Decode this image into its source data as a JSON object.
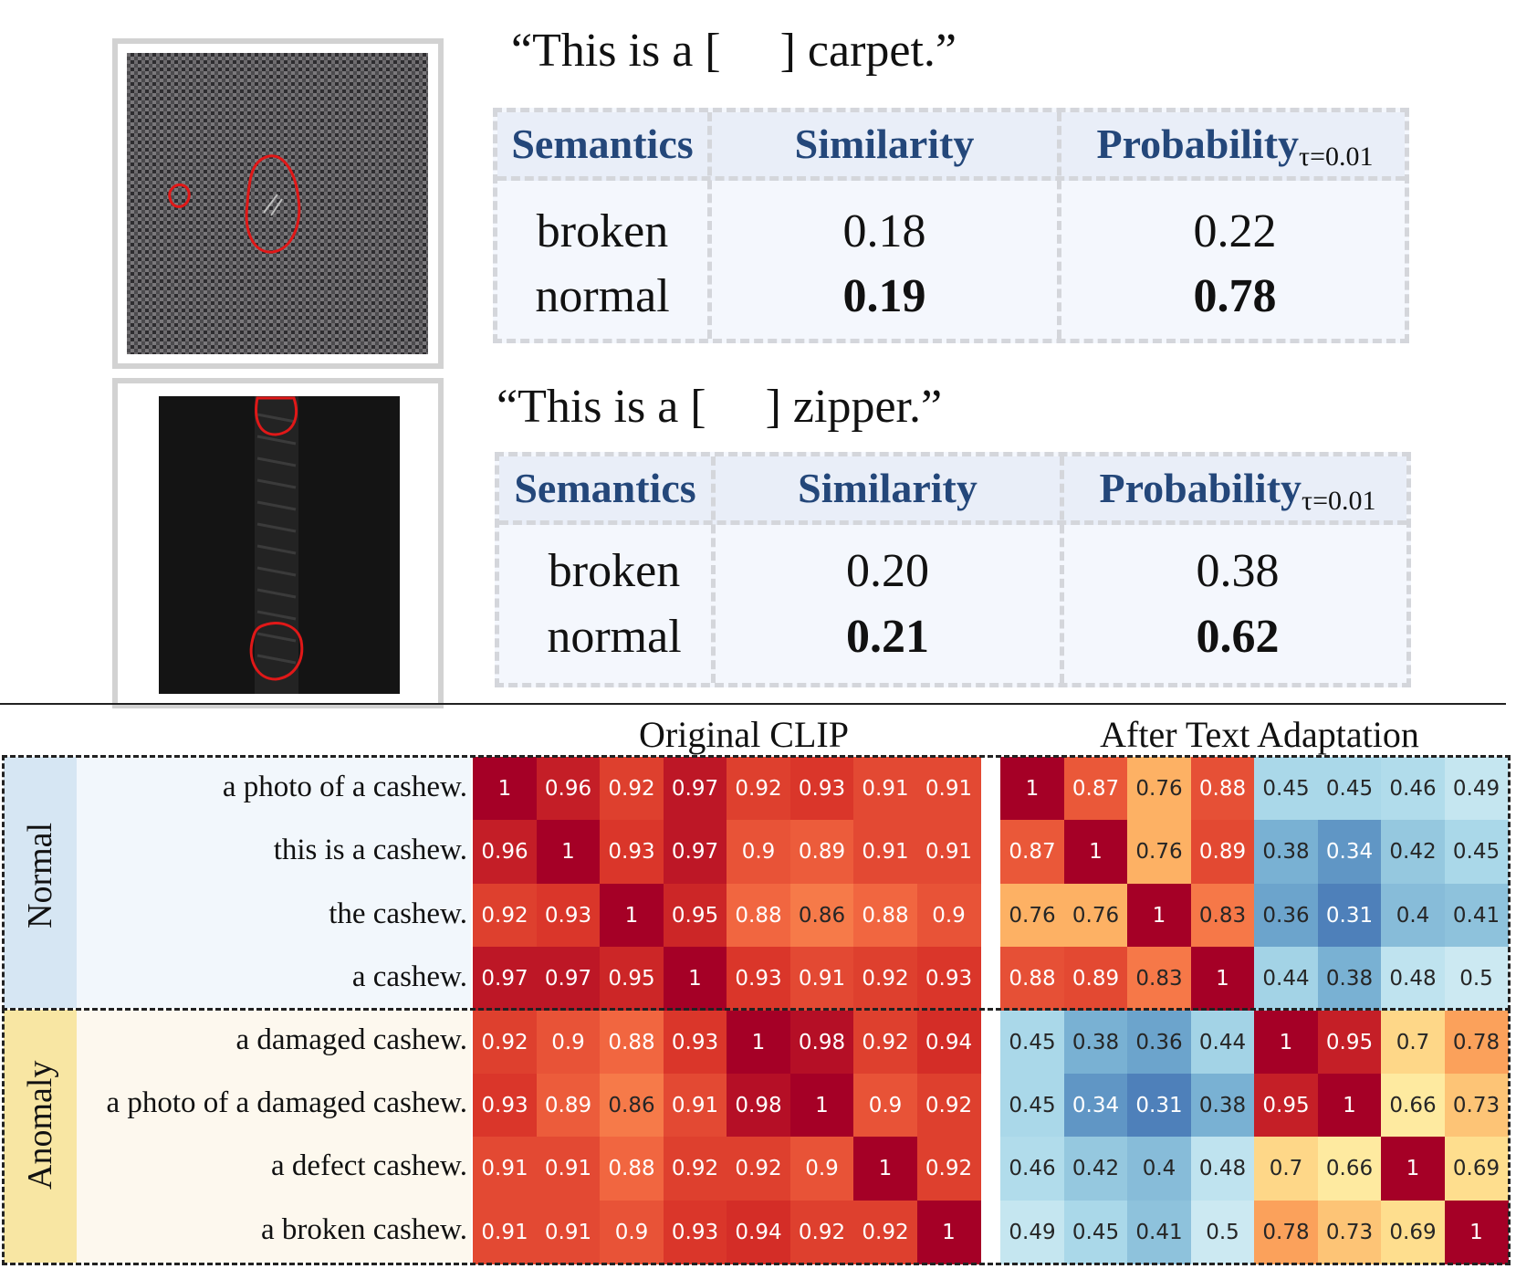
{
  "examples": [
    {
      "prompt": "“This is a [     ] carpet.”",
      "table": {
        "headers": {
          "semantics": "Semantics",
          "similarity": "Similarity",
          "probability": "Probability",
          "probability_sub": "τ=0.01"
        },
        "rows": [
          {
            "semantics": "broken",
            "similarity": "0.18",
            "probability": "0.22"
          },
          {
            "semantics": "normal",
            "similarity": "0.19",
            "probability": "0.78"
          }
        ]
      }
    },
    {
      "prompt": "“This is a [     ] zipper.”",
      "table": {
        "headers": {
          "semantics": "Semantics",
          "similarity": "Similarity",
          "probability": "Probability",
          "probability_sub": "τ=0.01"
        },
        "rows": [
          {
            "semantics": "broken",
            "similarity": "0.20",
            "probability": "0.38"
          },
          {
            "semantics": "normal",
            "similarity": "0.21",
            "probability": "0.62"
          }
        ]
      }
    }
  ],
  "heatmaps": {
    "group_labels": {
      "normal": "Normal",
      "anomaly": "Anomaly"
    },
    "row_labels": [
      "a photo of a cashew.",
      "this is a cashew.",
      "the cashew.",
      "a cashew.",
      "a damaged cashew.",
      "a photo of a damaged cashew.",
      "a defect cashew.",
      "a broken cashew."
    ]
  },
  "chart_data": [
    {
      "type": "heatmap",
      "title": "Original CLIP",
      "colormap": "RdYlBu_r",
      "values": [
        [
          "1",
          "0.96",
          "0.92",
          "0.97",
          "0.92",
          "0.93",
          "0.91",
          "0.91"
        ],
        [
          "0.96",
          "1",
          "0.93",
          "0.97",
          "0.9",
          "0.89",
          "0.91",
          "0.91"
        ],
        [
          "0.92",
          "0.93",
          "1",
          "0.95",
          "0.88",
          "0.86",
          "0.88",
          "0.9"
        ],
        [
          "0.97",
          "0.97",
          "0.95",
          "1",
          "0.93",
          "0.91",
          "0.92",
          "0.93"
        ],
        [
          "0.92",
          "0.9",
          "0.88",
          "0.93",
          "1",
          "0.98",
          "0.92",
          "0.94"
        ],
        [
          "0.93",
          "0.89",
          "0.86",
          "0.91",
          "0.98",
          "1",
          "0.9",
          "0.92"
        ],
        [
          "0.91",
          "0.91",
          "0.88",
          "0.92",
          "0.92",
          "0.9",
          "1",
          "0.92"
        ],
        [
          "0.91",
          "0.91",
          "0.9",
          "0.93",
          "0.94",
          "0.92",
          "0.92",
          "1"
        ]
      ]
    },
    {
      "type": "heatmap",
      "title": "After Text Adaptation",
      "colormap": "RdYlBu_r",
      "values": [
        [
          "1",
          "0.87",
          "0.76",
          "0.88",
          "0.45",
          "0.45",
          "0.46",
          "0.49"
        ],
        [
          "0.87",
          "1",
          "0.76",
          "0.89",
          "0.38",
          "0.34",
          "0.42",
          "0.45"
        ],
        [
          "0.76",
          "0.76",
          "1",
          "0.83",
          "0.36",
          "0.31",
          "0.4",
          "0.41"
        ],
        [
          "0.88",
          "0.89",
          "0.83",
          "1",
          "0.44",
          "0.38",
          "0.48",
          "0.5"
        ],
        [
          "0.45",
          "0.38",
          "0.36",
          "0.44",
          "1",
          "0.95",
          "0.7",
          "0.78"
        ],
        [
          "0.45",
          "0.34",
          "0.31",
          "0.38",
          "0.95",
          "1",
          "0.66",
          "0.73"
        ],
        [
          "0.46",
          "0.42",
          "0.4",
          "0.48",
          "0.7",
          "0.66",
          "1",
          "0.69"
        ],
        [
          "0.49",
          "0.45",
          "0.41",
          "0.5",
          "0.78",
          "0.73",
          "0.69",
          "1"
        ]
      ]
    }
  ]
}
